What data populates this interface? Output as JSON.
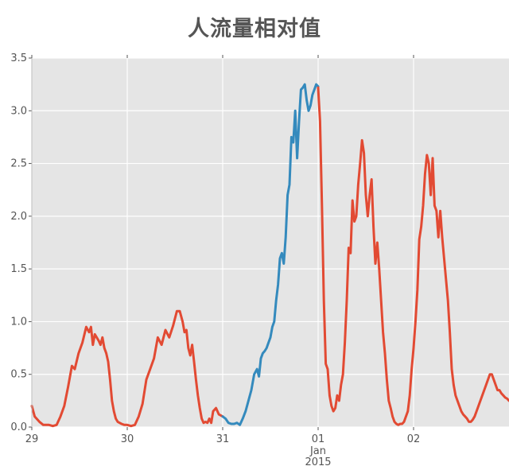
{
  "chart_data": {
    "type": "line",
    "title": "人流量相对值",
    "xlabel": "",
    "ylabel": "",
    "xlim": [
      0,
      5
    ],
    "ylim": [
      0,
      3.5
    ],
    "grid": true,
    "y_ticks": [
      {
        "v": 0.0,
        "label": "0.0"
      },
      {
        "v": 0.5,
        "label": "0.5"
      },
      {
        "v": 1.0,
        "label": "1.0"
      },
      {
        "v": 1.5,
        "label": "1.5"
      },
      {
        "v": 2.0,
        "label": "2.0"
      },
      {
        "v": 2.5,
        "label": "2.5"
      },
      {
        "v": 3.0,
        "label": "3.0"
      },
      {
        "v": 3.5,
        "label": "3.5"
      }
    ],
    "x_ticks": [
      {
        "v": 0,
        "label": "29",
        "sub": ""
      },
      {
        "v": 1,
        "label": "30",
        "sub": ""
      },
      {
        "v": 2,
        "label": "31",
        "sub": ""
      },
      {
        "v": 3,
        "label": "01",
        "sub": "Jan\n2015"
      },
      {
        "v": 4,
        "label": "02",
        "sub": ""
      }
    ],
    "series": [
      {
        "color": "#e24a33",
        "x": [
          0.0,
          0.03,
          0.08,
          0.12,
          0.18,
          0.22,
          0.26,
          0.3,
          0.34,
          0.38,
          0.42,
          0.45,
          0.49,
          0.53,
          0.57,
          0.6,
          0.62,
          0.64,
          0.66,
          0.68,
          0.7,
          0.72,
          0.74,
          0.76,
          0.78,
          0.8,
          0.82,
          0.84,
          0.86,
          0.88,
          0.9,
          0.92,
          0.94,
          0.97,
          1.0,
          1.04,
          1.08,
          1.12,
          1.16,
          1.2,
          1.24,
          1.28,
          1.32,
          1.36,
          1.4,
          1.44,
          1.48,
          1.52,
          1.55,
          1.58,
          1.6,
          1.62,
          1.64,
          1.66,
          1.68,
          1.7,
          1.72,
          1.74,
          1.76,
          1.78,
          1.8,
          1.82,
          1.84,
          1.86,
          1.88,
          1.9,
          1.93,
          1.96,
          2.0
        ],
        "y": [
          0.2,
          0.1,
          0.05,
          0.02,
          0.02,
          0.01,
          0.02,
          0.1,
          0.2,
          0.38,
          0.58,
          0.55,
          0.7,
          0.8,
          0.95,
          0.9,
          0.95,
          0.78,
          0.88,
          0.85,
          0.82,
          0.78,
          0.85,
          0.75,
          0.7,
          0.62,
          0.45,
          0.25,
          0.15,
          0.08,
          0.05,
          0.04,
          0.03,
          0.02,
          0.02,
          0.01,
          0.02,
          0.1,
          0.22,
          0.45,
          0.55,
          0.65,
          0.85,
          0.78,
          0.92,
          0.85,
          0.96,
          1.1,
          1.1,
          1.0,
          0.9,
          0.92,
          0.75,
          0.68,
          0.78,
          0.62,
          0.45,
          0.3,
          0.18,
          0.08,
          0.04,
          0.05,
          0.04,
          0.08,
          0.04,
          0.15,
          0.18,
          0.12,
          0.1
        ]
      },
      {
        "color": "#348abd",
        "x": [
          2.0,
          2.03,
          2.06,
          2.09,
          2.12,
          2.15,
          2.18,
          2.21,
          2.24,
          2.27,
          2.3,
          2.33,
          2.36,
          2.38,
          2.4,
          2.42,
          2.44,
          2.46,
          2.48,
          2.5,
          2.52,
          2.54,
          2.56,
          2.58,
          2.6,
          2.62,
          2.64,
          2.66,
          2.68,
          2.7,
          2.72,
          2.74,
          2.76,
          2.78,
          2.8,
          2.82,
          2.84,
          2.86,
          2.88,
          2.9,
          2.92,
          2.94,
          2.96,
          2.98,
          3.0
        ],
        "y": [
          0.1,
          0.08,
          0.04,
          0.03,
          0.03,
          0.04,
          0.02,
          0.08,
          0.15,
          0.25,
          0.35,
          0.5,
          0.55,
          0.48,
          0.65,
          0.7,
          0.72,
          0.75,
          0.8,
          0.85,
          0.95,
          1.0,
          1.2,
          1.35,
          1.6,
          1.65,
          1.55,
          1.8,
          2.2,
          2.3,
          2.75,
          2.7,
          3.0,
          2.55,
          2.9,
          3.2,
          3.22,
          3.25,
          3.1,
          3.0,
          3.05,
          3.15,
          3.2,
          3.25,
          3.23
        ]
      },
      {
        "color": "#e24a33",
        "x": [
          3.0,
          3.02,
          3.04,
          3.06,
          3.08,
          3.1,
          3.12,
          3.14,
          3.16,
          3.18,
          3.2,
          3.22,
          3.24,
          3.26,
          3.28,
          3.3,
          3.32,
          3.34,
          3.36,
          3.38,
          3.4,
          3.42,
          3.44,
          3.46,
          3.48,
          3.5,
          3.52,
          3.54,
          3.56,
          3.58,
          3.6,
          3.62,
          3.64,
          3.66,
          3.68,
          3.7,
          3.72,
          3.74,
          3.76,
          3.78,
          3.8,
          3.82,
          3.84,
          3.86,
          3.88,
          3.9,
          3.92,
          3.94,
          3.96,
          3.98,
          4.0,
          4.02,
          4.04,
          4.06,
          4.08,
          4.1,
          4.12,
          4.14,
          4.16,
          4.18,
          4.2,
          4.22,
          4.24,
          4.26,
          4.28,
          4.3,
          4.32,
          4.34,
          4.36,
          4.38,
          4.4,
          4.42,
          4.44,
          4.46,
          4.48,
          4.5,
          4.52,
          4.54,
          4.56,
          4.58,
          4.6,
          4.62,
          4.64,
          4.66,
          4.68,
          4.7,
          4.72,
          4.74,
          4.76,
          4.78,
          4.8,
          4.82,
          4.84,
          4.86,
          4.88,
          4.9,
          4.92,
          4.94,
          4.96,
          4.98,
          5.0
        ],
        "y": [
          3.22,
          2.9,
          2.1,
          1.2,
          0.6,
          0.55,
          0.3,
          0.2,
          0.15,
          0.18,
          0.3,
          0.25,
          0.4,
          0.5,
          0.8,
          1.2,
          1.7,
          1.65,
          2.15,
          1.95,
          2.0,
          2.3,
          2.5,
          2.72,
          2.6,
          2.2,
          2.0,
          2.2,
          2.35,
          1.9,
          1.55,
          1.75,
          1.5,
          1.2,
          0.9,
          0.7,
          0.45,
          0.25,
          0.18,
          0.1,
          0.05,
          0.03,
          0.02,
          0.03,
          0.03,
          0.05,
          0.1,
          0.15,
          0.3,
          0.55,
          0.75,
          1.0,
          1.3,
          1.78,
          1.9,
          2.1,
          2.4,
          2.58,
          2.5,
          2.2,
          2.55,
          2.1,
          2.05,
          1.8,
          2.05,
          1.8,
          1.6,
          1.4,
          1.2,
          0.9,
          0.55,
          0.4,
          0.3,
          0.25,
          0.2,
          0.15,
          0.12,
          0.1,
          0.08,
          0.05,
          0.05,
          0.07,
          0.1,
          0.15,
          0.2,
          0.25,
          0.3,
          0.35,
          0.4,
          0.45,
          0.5,
          0.5,
          0.45,
          0.4,
          0.35,
          0.35,
          0.32,
          0.3,
          0.28,
          0.27,
          0.25
        ]
      }
    ]
  }
}
